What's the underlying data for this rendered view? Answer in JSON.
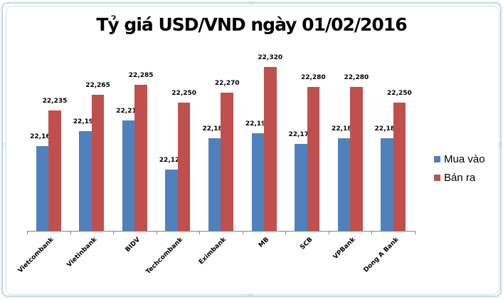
{
  "chart_data": {
    "type": "bar",
    "title": "Tỷ giá USD/VND ngày 01/02/2016",
    "xlabel": "",
    "ylabel": "",
    "ylim": [
      22000,
      22350
    ],
    "grid": false,
    "legend_position": "right",
    "categories": [
      "Vietcombank",
      "Vietinbank",
      "BIDV",
      "Techcombank",
      "Eximbank",
      "MB",
      "SCB",
      "VPBank",
      "Dong A Bank"
    ],
    "series": [
      {
        "name": "Mua vào",
        "color": "#4f81bd",
        "values": [
          22165,
          22195,
          22215,
          22120,
          22180,
          22190,
          22170,
          22180,
          22180
        ],
        "labels": [
          "22,165",
          "22,195",
          "22,215",
          "22,120",
          "22,180",
          "22,190",
          "22,170",
          "22,180",
          "22,180"
        ]
      },
      {
        "name": "Bán ra",
        "color": "#c0504d",
        "values": [
          22235,
          22265,
          22285,
          22250,
          22270,
          22320,
          22280,
          22280,
          22250
        ],
        "labels": [
          "22,235",
          "22,265",
          "22,285",
          "22,250",
          "22,270",
          "22,320",
          "22,280",
          "22,280",
          "22,250"
        ]
      }
    ]
  }
}
